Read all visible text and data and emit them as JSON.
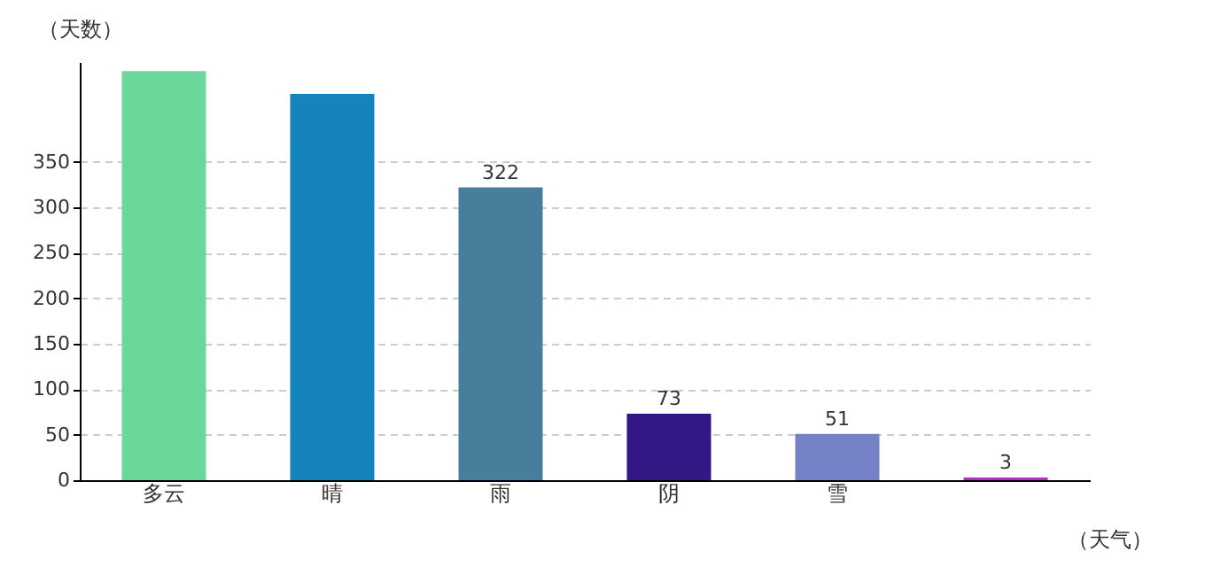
{
  "chart_data": {
    "type": "bar",
    "xlabel": "（天气）",
    "ylabel": "（天数）",
    "categories": [
      "多云",
      "晴",
      "雨",
      "阴",
      "雪",
      null
    ],
    "values": [
      450,
      425,
      322,
      73,
      51,
      3
    ],
    "colors": [
      "#6cd79a",
      "#1584bc",
      "#477e9c",
      "#331785",
      "#7682c8",
      "#b22fc7"
    ],
    "value_labels": [
      null,
      null,
      "322",
      "73",
      "51",
      "3"
    ],
    "ylim": [
      0,
      460
    ],
    "yticks": [
      0,
      50,
      100,
      150,
      200,
      250,
      300,
      350
    ],
    "grid": "y"
  }
}
